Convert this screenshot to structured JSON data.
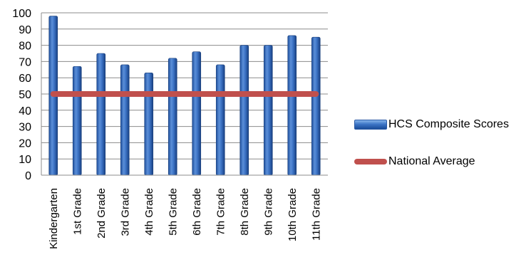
{
  "chart_data": {
    "type": "bar",
    "title": "",
    "xlabel": "",
    "ylabel": "",
    "ylim": [
      0,
      100
    ],
    "yticks": [
      0,
      10,
      20,
      30,
      40,
      50,
      60,
      70,
      80,
      90,
      100
    ],
    "grid": true,
    "legend_position": "right",
    "categories": [
      "Kindergarten",
      "1st Grade",
      "2nd Grade",
      "3rd Grade",
      "4th Grade",
      "5th Grade",
      "6th Grade",
      "7th Grade",
      "8th Grade",
      "9th Grade",
      "10th Grade",
      "11th Grade"
    ],
    "series": [
      {
        "name": "HCS Composite Scores",
        "type": "bar",
        "color": "#3a6fc0",
        "values": [
          98,
          67,
          75,
          68,
          63,
          72,
          76,
          68,
          80,
          80,
          86,
          85
        ]
      },
      {
        "name": "National Average",
        "type": "line",
        "color": "#c0504d",
        "values": [
          50,
          50,
          50,
          50,
          50,
          50,
          50,
          50,
          50,
          50,
          50,
          50
        ]
      }
    ]
  }
}
